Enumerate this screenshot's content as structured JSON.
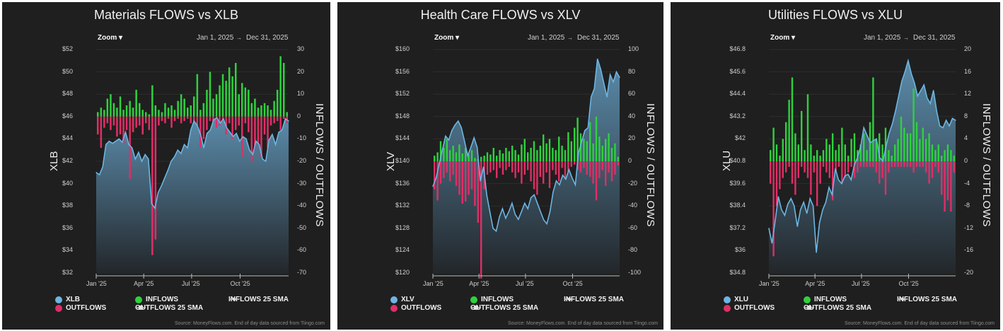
{
  "colors": {
    "price_line": "#6cb6e3",
    "inflows": "#2fd13e",
    "outflows": "#df2f66",
    "panel_bg": "#1f1f1f",
    "area_top": "#5b8cab",
    "area_bottom": "#23272b"
  },
  "panels": [
    {
      "zoom_label": "Zoom ▾",
      "date_from": "Jan 1, 2025",
      "date_arrow": "→",
      "date_to": "Dec 31, 2025",
      "legend": [
        {
          "label": "XLB",
          "icon": "circle",
          "color": "#6cb6e3"
        },
        {
          "label": "OUTFLOWS",
          "icon": "circle",
          "color": "#df2f66"
        },
        {
          "label": "INFLOWS",
          "icon": "circle",
          "color": "#2fd13e"
        },
        {
          "label": "OUTFLOWS 25 SMA",
          "icon": "square-line"
        },
        {
          "label": "INFLOWS 25 SMA",
          "icon": "diamond-line"
        }
      ],
      "source": "Source: MoneyFlows.com. End of day data sourced from Tiingo.com"
    },
    {
      "zoom_label": "Zoom ▾",
      "date_from": "Jan 1, 2025",
      "date_arrow": "→",
      "date_to": "Dec 31, 2025",
      "legend": [
        {
          "label": "XLV",
          "icon": "circle",
          "color": "#6cb6e3"
        },
        {
          "label": "OUTFLOWS",
          "icon": "circle",
          "color": "#df2f66"
        },
        {
          "label": "INFLOWS",
          "icon": "circle",
          "color": "#2fd13e"
        },
        {
          "label": "OUTFLOWS 25 SMA",
          "icon": "square-line"
        },
        {
          "label": "INFLOWS 25 SMA",
          "icon": "diamond-line"
        }
      ],
      "source": "Source: MoneyFlows.com. End of day data sourced from Tiingo.com"
    },
    {
      "zoom_label": "Zoom ▾",
      "date_from": "Jan 1, 2025",
      "date_arrow": "→",
      "date_to": "Dec 31, 2025",
      "legend": [
        {
          "label": "XLU",
          "icon": "circle",
          "color": "#6cb6e3"
        },
        {
          "label": "OUTFLOWS",
          "icon": "circle",
          "color": "#df2f66"
        },
        {
          "label": "INFLOWS",
          "icon": "circle",
          "color": "#2fd13e"
        },
        {
          "label": "OUTFLOWS 25 SMA",
          "icon": "square-line"
        },
        {
          "label": "INFLOWS 25 SMA",
          "icon": "diamond-line"
        }
      ],
      "source": "Source: MoneyFlows.com. End of day data sourced from Tiingo.com"
    }
  ],
  "chart_data": [
    {
      "type": "combo-bar-area",
      "title": "Materials FLOWS vs XLB",
      "ylabel": "XLB",
      "y2label": "INFLOWS / OUTFLOWS",
      "ylim": [
        32,
        52
      ],
      "y2lim": [
        -70,
        30
      ],
      "yticks": [
        "$52",
        "$50",
        "$48",
        "$46",
        "$44",
        "$42",
        "$40",
        "$38",
        "$36",
        "$34",
        "$32"
      ],
      "y2ticks": [
        "30",
        "20",
        "10",
        "0",
        "-10",
        "-20",
        "-30",
        "-40",
        "-50",
        "-60",
        "-70"
      ],
      "xticks": [
        {
          "label": "Jan '25",
          "frac": 0
        },
        {
          "label": "Apr '25",
          "frac": 0.247
        },
        {
          "label": "Jul '25",
          "frac": 0.496
        },
        {
          "label": "Oct '25",
          "frac": 0.748
        }
      ],
      "grid": true,
      "legend_position": "bottom",
      "series": [
        {
          "name": "XLB",
          "kind": "area",
          "values": [
            41.0,
            40.8,
            41.5,
            43.5,
            43.8,
            43.6,
            43.8,
            44.0,
            43.7,
            44.6,
            43.5,
            43.2,
            42.2,
            42.8,
            42.0,
            42.6,
            42.2,
            38.2,
            37.8,
            39.2,
            39.8,
            40.5,
            41.2,
            42.0,
            42.4,
            43.0,
            42.7,
            43.5,
            43.2,
            44.8,
            45.6,
            45.2,
            44.4,
            43.2,
            44.5,
            44.8,
            45.7,
            45.9,
            45.4,
            45.8,
            45.0,
            44.6,
            44.2,
            44.5,
            43.8,
            44.2,
            44.0,
            43.0,
            42.6,
            43.8,
            43.5,
            42.2,
            42.0,
            43.9,
            44.4,
            43.5,
            44.6,
            44.8,
            45.8,
            45.6
          ]
        },
        {
          "name": "INFLOWS",
          "kind": "bar",
          "values": [
            2,
            4,
            3,
            8,
            10,
            6,
            4,
            9,
            3,
            5,
            7,
            4,
            12,
            6,
            3,
            2,
            1,
            14,
            5,
            3,
            2,
            6,
            4,
            5,
            3,
            7,
            10,
            8,
            4,
            5,
            9,
            19,
            3,
            6,
            12,
            20,
            8,
            10,
            14,
            19,
            16,
            22,
            18,
            24,
            10,
            15,
            13,
            12,
            6,
            8,
            4,
            5,
            6,
            5,
            3,
            7,
            12,
            27,
            24,
            2
          ]
        },
        {
          "name": "OUTFLOWS",
          "kind": "bar",
          "values": [
            -8,
            -14,
            -5,
            -3,
            -6,
            -4,
            -9,
            -8,
            -12,
            -6,
            -28,
            -7,
            -5,
            -4,
            -8,
            -3,
            -6,
            -62,
            -55,
            -4,
            -2,
            -3,
            -1,
            -5,
            -2,
            -1,
            -3,
            -2,
            -1,
            -3,
            -2,
            -4,
            -14,
            -10,
            -6,
            -2,
            -3,
            -5,
            -4,
            -2,
            -8,
            -3,
            -10,
            -6,
            -4,
            -18,
            -3,
            -7,
            -20,
            -15,
            -12,
            -18,
            -8,
            -14,
            -4,
            -3,
            -2,
            -6,
            -1,
            -3
          ]
        }
      ]
    },
    {
      "type": "combo-bar-area",
      "title": "Health Care FLOWS vs XLV",
      "ylabel": "XLV",
      "y2label": "INFLOWS / OUTFLOWS",
      "ylim": [
        120,
        160
      ],
      "y2lim": [
        -100,
        100
      ],
      "yticks": [
        "$160",
        "$156",
        "$152",
        "$148",
        "$144",
        "$140",
        "$136",
        "$132",
        "$128",
        "$124",
        "$120"
      ],
      "y2ticks": [
        "100",
        "80",
        "60",
        "40",
        "20",
        "0",
        "-20",
        "-40",
        "-60",
        "-80",
        "-100"
      ],
      "xticks": [
        {
          "label": "Jan '25",
          "frac": 0
        },
        {
          "label": "Apr '25",
          "frac": 0.247
        },
        {
          "label": "Jul '25",
          "frac": 0.496
        },
        {
          "label": "Oct '25",
          "frac": 0.748
        }
      ],
      "grid": true,
      "legend_position": "bottom",
      "series": [
        {
          "name": "XLV",
          "kind": "area",
          "values": [
            135.5,
            137,
            139.5,
            142,
            144.5,
            143.8,
            145.5,
            146.5,
            147.2,
            146,
            143.6,
            141,
            142.5,
            144.2,
            142.5,
            136.5,
            139,
            134,
            131,
            128,
            127.5,
            130,
            131.5,
            129.8,
            131,
            132.5,
            130.5,
            129.6,
            131,
            132.5,
            131.5,
            133.5,
            134,
            132.5,
            131,
            129.5,
            128.8,
            131,
            134.5,
            136.5,
            135.8,
            137.5,
            136.8,
            138.5,
            137,
            135.8,
            141.5,
            143.5,
            145.5,
            146,
            151.5,
            153,
            158.3,
            156.5,
            154,
            151.5,
            155.5,
            154.2,
            156,
            155
          ]
        },
        {
          "name": "INFLOWS",
          "kind": "bar",
          "values": [
            5,
            8,
            18,
            12,
            20,
            10,
            14,
            8,
            15,
            7,
            12,
            6,
            10,
            3,
            2,
            4,
            5,
            8,
            6,
            12,
            5,
            10,
            7,
            12,
            9,
            14,
            10,
            6,
            15,
            20,
            8,
            12,
            18,
            10,
            14,
            24,
            16,
            20,
            12,
            10,
            22,
            14,
            10,
            26,
            18,
            30,
            39,
            25,
            20,
            18,
            35,
            16,
            40,
            22,
            14,
            20,
            25,
            12,
            16,
            4
          ]
        },
        {
          "name": "OUTFLOWS",
          "kind": "bar",
          "values": [
            -25,
            -35,
            -20,
            -15,
            -10,
            -18,
            -12,
            -22,
            -30,
            -38,
            -36,
            -30,
            -25,
            -40,
            -55,
            -105,
            -25,
            -12,
            -10,
            -8,
            -15,
            -6,
            -12,
            -8,
            -5,
            -10,
            -15,
            -10,
            -20,
            -12,
            -8,
            -18,
            -25,
            -30,
            -14,
            -20,
            -10,
            -24,
            -8,
            -12,
            -18,
            -6,
            -15,
            -10,
            -5,
            -3,
            -8,
            -10,
            -6,
            -12,
            -14,
            -20,
            -35,
            -15,
            -8,
            -22,
            -10,
            -18,
            -12,
            -4
          ]
        }
      ]
    },
    {
      "type": "combo-bar-area",
      "title": "Utilities FLOWS vs XLU",
      "ylabel": "XLU",
      "y2label": "INFLOWS / OUTFLOWS",
      "ylim": [
        34.8,
        46.8
      ],
      "y2lim": [
        -20,
        20
      ],
      "yticks": [
        "$46.8",
        "$45.6",
        "$44.4",
        "$43.2",
        "$42",
        "$40.8",
        "$39.6",
        "$38.4",
        "$37.2",
        "$36",
        "$34.8"
      ],
      "y2ticks": [
        "20",
        "16",
        "12",
        "8",
        "4",
        "0",
        "-4",
        "-8",
        "-12",
        "-16",
        "-20"
      ],
      "xticks": [
        {
          "label": "Jan '25",
          "frac": 0
        },
        {
          "label": "Apr '25",
          "frac": 0.247
        },
        {
          "label": "Jul '25",
          "frac": 0.496
        },
        {
          "label": "Oct '25",
          "frac": 0.748
        }
      ],
      "grid": true,
      "legend_position": "bottom",
      "series": [
        {
          "name": "XLU",
          "kind": "area",
          "values": [
            37.2,
            36.4,
            37.6,
            38.9,
            38.2,
            37.9,
            38.5,
            38.8,
            38.4,
            37.3,
            38.2,
            38.6,
            38.0,
            38.8,
            38.4,
            35.9,
            37.5,
            38.2,
            38.6,
            39.4,
            39.0,
            40.4,
            39.8,
            39.6,
            40.0,
            40.1,
            39.8,
            40.6,
            41.0,
            41.6,
            42.6,
            42.2,
            41.8,
            41.9,
            42.0,
            41.0,
            40.8,
            41.6,
            42.3,
            42.8,
            43.5,
            44.3,
            45.1,
            45.6,
            46.2,
            45.5,
            45.0,
            44.3,
            44.6,
            44.9,
            44.2,
            43.9,
            44.6,
            43.5,
            42.7,
            42.6,
            43.0,
            42.7,
            43.1,
            43.0
          ]
        },
        {
          "name": "INFLOWS",
          "kind": "bar",
          "values": [
            2,
            6,
            3,
            1,
            4,
            7,
            11,
            15,
            5,
            3,
            9,
            2,
            12,
            3,
            1,
            2,
            1,
            2,
            4,
            3,
            5,
            2,
            3,
            6,
            3,
            1,
            4,
            5,
            2,
            3,
            5,
            2,
            7,
            15,
            4,
            5,
            3,
            6,
            2,
            1,
            3,
            4,
            8,
            6,
            5,
            5,
            13,
            7,
            4,
            6,
            4,
            5,
            3,
            2,
            3,
            1,
            2,
            3,
            2,
            1
          ]
        },
        {
          "name": "OUTFLOWS",
          "kind": "bar",
          "values": [
            -4,
            -17,
            -8,
            -5,
            -3,
            -2,
            -1,
            -4,
            -6,
            -3,
            -1,
            -2,
            -3,
            -6,
            -2,
            -8,
            -4,
            -1,
            -2,
            -3,
            -7,
            -2,
            -1,
            -4,
            -3,
            -2,
            -1,
            -3,
            -2,
            -1,
            -1,
            -1,
            -1,
            -1,
            -2,
            -4,
            -3,
            -6,
            -2,
            -1,
            -1,
            -1,
            -1,
            -1,
            -1,
            -1,
            -2,
            -1,
            -1,
            -1,
            -2,
            -4,
            -3,
            -1,
            -2,
            -6,
            -9,
            -7,
            -9,
            -2
          ]
        }
      ]
    }
  ]
}
